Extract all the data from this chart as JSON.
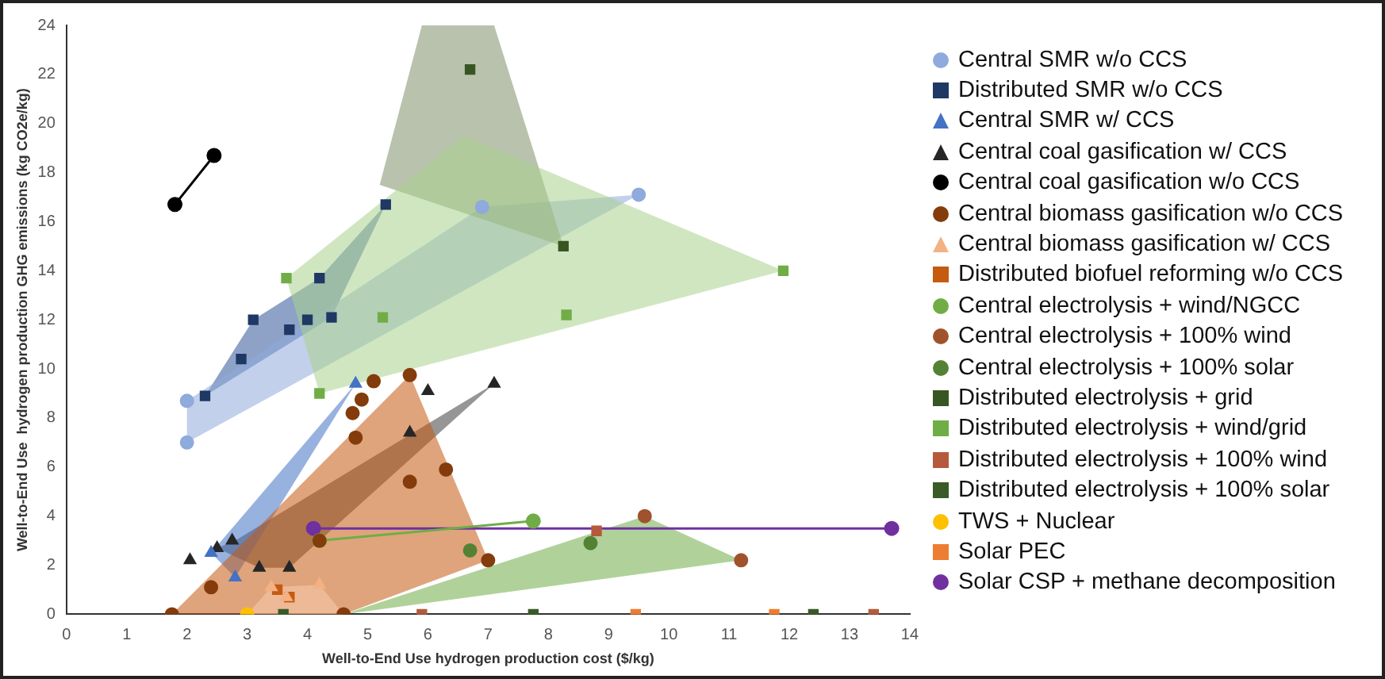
{
  "chart_data": {
    "type": "scatter",
    "xlabel": "Well-to-End Use hydrogen production cost ($/kg)",
    "ylabel": "Well-to-End Use  hydrogen production GHG emissions (kg CO2e/kg)",
    "xlim": [
      0,
      14
    ],
    "xticks": [
      0,
      1,
      2,
      3,
      4,
      5,
      6,
      7,
      8,
      9,
      10,
      11,
      12,
      13,
      14
    ],
    "ylim": [
      0,
      24
    ],
    "yticks": [
      0,
      2,
      4,
      6,
      8,
      10,
      12,
      14,
      16,
      18,
      20,
      22,
      24
    ],
    "grid": false,
    "legend": "right",
    "series": [
      {
        "type": "area",
        "color": "#f8cbad",
        "x": [
          3.0,
          3.4,
          4.2,
          4.6
        ],
        "values": [
          0,
          1.1,
          1.2,
          0
        ]
      },
      {
        "type": "area",
        "color": "#a9d18e",
        "x": [
          3.65,
          4.2,
          11.9,
          6.6
        ],
        "values": [
          13.7,
          9.0,
          14.0,
          19.5
        ]
      },
      {
        "type": "area",
        "color": "#7f8f6a",
        "x": [
          5.2,
          5.9,
          7.1,
          8.25
        ],
        "values": [
          17.5,
          24,
          24,
          15.0
        ]
      },
      {
        "type": "area",
        "color": "#8faadc",
        "x": [
          2.0,
          9.5,
          6.9,
          2.0
        ],
        "values": [
          7.0,
          17.1,
          16.6,
          8.7
        ]
      },
      {
        "type": "area",
        "color": "#2f5597",
        "x": [
          2.3,
          4.4,
          5.3,
          4.2,
          3.1
        ],
        "values": [
          8.9,
          12.1,
          16.7,
          13.7,
          12.0
        ]
      },
      {
        "type": "area",
        "color": "#c55a11",
        "x": [
          1.75,
          5.7,
          7.0,
          4.6
        ],
        "values": [
          0,
          9.75,
          2.2,
          0
        ]
      },
      {
        "type": "area",
        "color": "#70ad47",
        "x": [
          4.6,
          9.6,
          11.2
        ],
        "values": [
          0,
          4.0,
          2.2
        ]
      },
      {
        "type": "area",
        "color": "#4472c4",
        "x": [
          2.4,
          4.8,
          2.8
        ],
        "values": [
          2.5,
          9.4,
          1.5
        ]
      },
      {
        "type": "area",
        "color": "#404040",
        "x": [
          2.5,
          2.8,
          7.1,
          3.7,
          3.2
        ],
        "values": [
          2.7,
          3.0,
          9.4,
          1.9,
          1.9
        ]
      },
      {
        "name": "Central SMR w/o CCS",
        "marker": "circle",
        "color": "#8faadc",
        "x": [
          2.0,
          2.0,
          6.9,
          9.5
        ],
        "values": [
          7.0,
          8.7,
          16.6,
          17.1
        ]
      },
      {
        "name": "Distributed SMR w/o CCS",
        "type": "scatter",
        "marker": "square",
        "color": "#1f3864",
        "x": [
          2.3,
          2.9,
          3.1,
          3.7,
          4.0,
          4.4,
          4.2,
          5.3
        ],
        "values": [
          8.9,
          10.4,
          12.0,
          11.6,
          12.0,
          12.1,
          13.7,
          16.7
        ]
      },
      {
        "name": "Central SMR w/ CCS",
        "type": "scatter",
        "marker": "triangle",
        "color": "#4472c4",
        "x": [
          2.4,
          2.8,
          4.8
        ],
        "values": [
          2.5,
          1.5,
          9.4
        ]
      },
      {
        "name": "Central coal gasification w/ CCS",
        "type": "scatter",
        "marker": "triangle",
        "color": "#262626",
        "x": [
          2.05,
          2.5,
          2.75,
          3.2,
          3.7,
          5.7,
          6.0,
          7.1
        ],
        "values": [
          2.2,
          2.7,
          3.0,
          1.9,
          1.9,
          7.4,
          9.1,
          9.4
        ]
      },
      {
        "name": "Central coal gasification w/o CCS",
        "type": "line",
        "marker": "circle",
        "color": "#000000",
        "x": [
          1.8,
          2.45
        ],
        "values": [
          16.7,
          18.7
        ]
      },
      {
        "name": "Central biomass gasification w/o CCS",
        "type": "scatter",
        "marker": "circle",
        "color": "#843c0c",
        "x": [
          1.75,
          2.4,
          4.2,
          4.8,
          4.75,
          4.9,
          5.1,
          5.7,
          5.7,
          6.3,
          7.0,
          4.6
        ],
        "values": [
          0,
          1.1,
          3.0,
          7.2,
          8.2,
          8.75,
          9.5,
          9.75,
          5.4,
          5.9,
          2.2,
          0
        ]
      },
      {
        "name": "Central biomass gasification w/ CCS",
        "type": "scatter",
        "marker": "triangle",
        "color": "#f4b183",
        "x": [
          3.4,
          4.2,
          3.65
        ],
        "values": [
          1.1,
          1.2,
          0.7
        ]
      },
      {
        "name": "Distributed biofuel reforming w/o CCS",
        "type": "scatter",
        "marker": "square",
        "color": "#c55a11",
        "x": [
          3.5,
          3.7
        ],
        "values": [
          1.0,
          0.7
        ]
      },
      {
        "name": "Central electrolysis + wind/NGCC",
        "type": "line",
        "marker": "circle",
        "color": "#70ad47",
        "x": [
          4.2,
          7.75
        ],
        "values": [
          3.0,
          3.8
        ]
      },
      {
        "name": "Central electrolysis + 100% wind",
        "type": "scatter",
        "marker": "circle",
        "color": "#a0522d",
        "x": [
          9.6,
          11.2
        ],
        "values": [
          4.0,
          2.2
        ]
      },
      {
        "name": "Central electrolysis + 100% solar",
        "type": "scatter",
        "marker": "circle",
        "color": "#548235",
        "x": [
          6.7,
          8.7
        ],
        "values": [
          2.6,
          2.9
        ]
      },
      {
        "name": "Distributed electrolysis + grid",
        "type": "scatter",
        "marker": "square",
        "color": "#375623",
        "x": [
          6.7,
          8.25
        ],
        "values": [
          22.2,
          15.0
        ]
      },
      {
        "name": "Distributed electrolysis + wind/grid",
        "type": "scatter",
        "marker": "square",
        "color": "#70ad47",
        "x": [
          3.65,
          4.2,
          5.25,
          8.3,
          11.9
        ],
        "values": [
          13.7,
          9.0,
          12.1,
          12.2,
          14.0
        ]
      },
      {
        "name": "Distributed electrolysis + 100% wind",
        "type": "scatter",
        "marker": "square",
        "color": "#b55a3c",
        "x": [
          5.9,
          8.8,
          13.4
        ],
        "values": [
          0,
          3.4,
          0
        ]
      },
      {
        "name": "Distributed electrolysis + 100% solar",
        "type": "scatter",
        "marker": "square",
        "color": "#3a5a28",
        "x": [
          3.6,
          7.75,
          12.4
        ],
        "values": [
          0,
          0,
          0
        ]
      },
      {
        "name": "TWS + Nuclear",
        "type": "scatter",
        "marker": "circle",
        "color": "#ffc000",
        "x": [
          3.0
        ],
        "values": [
          0
        ]
      },
      {
        "name": "Solar PEC",
        "type": "scatter",
        "marker": "square",
        "color": "#ed7d31",
        "x": [
          9.45,
          11.75
        ],
        "values": [
          0,
          0
        ]
      },
      {
        "name": "Solar CSP + methane decomposition",
        "type": "line",
        "marker": "circle",
        "color": "#7030a0",
        "x": [
          4.1,
          13.7
        ],
        "values": [
          3.5,
          3.5
        ]
      }
    ]
  }
}
